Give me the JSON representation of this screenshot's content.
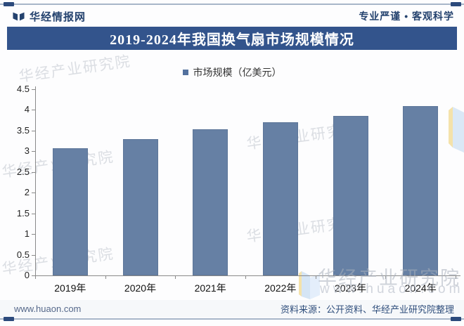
{
  "header": {
    "brand": "华经情报网",
    "slogan": "专业严谨 • 客观科学"
  },
  "title_bar": {
    "title": "2019-2024年我国换气扇市场规模情况"
  },
  "chart_data": {
    "type": "bar",
    "title": "2019-2024年我国换气扇市场规模情况",
    "legend": [
      "市场规模（亿美元）"
    ],
    "legend_position": "top-center",
    "categories": [
      "2019年",
      "2020年",
      "2021年",
      "2022年",
      "2023年",
      "2024年"
    ],
    "values": [
      3.08,
      3.3,
      3.53,
      3.7,
      3.85,
      4.1
    ],
    "xlabel": "",
    "ylabel": "",
    "ylim": [
      0,
      4.5
    ],
    "yticks": [
      0,
      0.5,
      1,
      1.5,
      2,
      2.5,
      3,
      3.5,
      4,
      4.5
    ],
    "grid": false,
    "bar_color": "#6680a4"
  },
  "watermarks": {
    "diagonal_text": "华经产业研究院",
    "big_text": "华经产业研究院",
    "url_text": "www.huaon.com"
  },
  "footer": {
    "site": "www.huaon.com",
    "source": "资料来源：公开资料、华经产业研究院整理"
  },
  "colors": {
    "title_bar_bg": "#33548c",
    "navy": "#2c4a7c",
    "bar": "#6680a4",
    "rule_line": "#a7b6c9"
  }
}
